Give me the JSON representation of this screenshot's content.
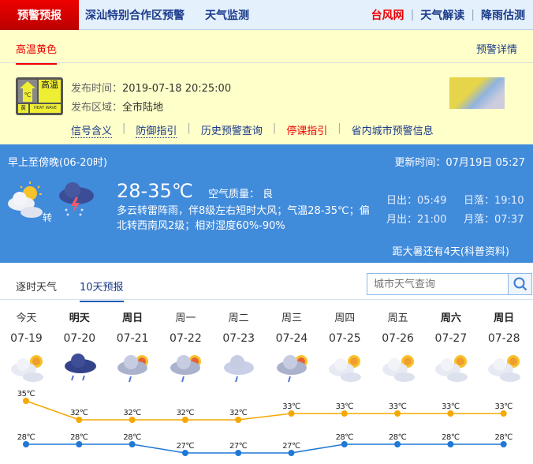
{
  "topnav": {
    "active": "预警预报",
    "links": [
      "深汕特别合作区预警",
      "天气监测"
    ],
    "right": [
      "台风网",
      "天气解读",
      "降雨估测"
    ]
  },
  "warning": {
    "tab": "高温黄色",
    "detail": "预警详情",
    "badge": {
      "main": "高温",
      "level": "黄",
      "en": "HEAT WAVE",
      "unit": "℃"
    },
    "time_label": "发布时间：",
    "time": "2019-07-18 20:25:00",
    "area_label": "发布区域：",
    "area": "全市陆地",
    "links": [
      "信号含义",
      "防御指引",
      "历史预警查询",
      "停课指引",
      "省内城市预警信息"
    ]
  },
  "today": {
    "period": "早上至傍晚(06-20时)",
    "updated": "更新时间：07月19日 05:27",
    "temp": "28-35℃",
    "aq": "空气质量： 良",
    "zhuan": "转",
    "desc": "多云转雷阵雨，伴8级左右短时大风；气温28-35℃；偏北转西南风2级；相对湿度60%-90%",
    "sunrise": "日出：05:49",
    "sunset": "日落：19:10",
    "moonrise": "月出：21:00",
    "moonset": "月落：07:37",
    "solar_term": "距大暑还有4天(科普资料)",
    "icons": [
      "partly-cloudy-icon",
      "thunderstorm-icon"
    ]
  },
  "tabs": [
    "逐时天气",
    "10天预报"
  ],
  "search": {
    "placeholder": "城市天气查询"
  },
  "forecast": [
    {
      "wd": "今天",
      "date": "07-19",
      "icon": "partly-cloudy",
      "bold": false
    },
    {
      "wd": "明天",
      "date": "07-20",
      "icon": "rain",
      "bold": true
    },
    {
      "wd": "周日",
      "date": "07-21",
      "icon": "sun-shower",
      "bold": true
    },
    {
      "wd": "周一",
      "date": "07-22",
      "icon": "sun-shower",
      "bold": false
    },
    {
      "wd": "周二",
      "date": "07-23",
      "icon": "light-rain",
      "bold": false
    },
    {
      "wd": "周三",
      "date": "07-24",
      "icon": "sun-shower",
      "bold": false
    },
    {
      "wd": "周四",
      "date": "07-25",
      "icon": "partly-cloudy",
      "bold": false
    },
    {
      "wd": "周五",
      "date": "07-26",
      "icon": "partly-cloudy",
      "bold": false
    },
    {
      "wd": "周六",
      "date": "07-27",
      "icon": "partly-cloudy",
      "bold": true
    },
    {
      "wd": "周日",
      "date": "07-28",
      "icon": "partly-cloudy",
      "bold": true
    }
  ],
  "chart_data": {
    "type": "line",
    "categories": [
      "07-19",
      "07-20",
      "07-21",
      "07-22",
      "07-23",
      "07-24",
      "07-25",
      "07-26",
      "07-27",
      "07-28"
    ],
    "series": [
      {
        "values": [
          35,
          32,
          32,
          32,
          32,
          33,
          33,
          33,
          33,
          33
        ],
        "color": "#f5a800"
      },
      {
        "values": [
          28,
          28,
          28,
          27,
          27,
          27,
          28,
          28,
          28,
          28
        ],
        "color": "#1f78d6"
      }
    ],
    "unit": "℃"
  }
}
